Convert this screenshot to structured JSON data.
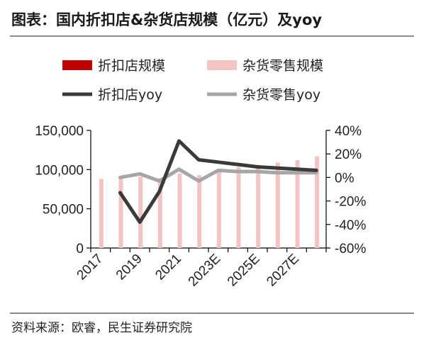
{
  "title": "图表：国内折扣店&杂货店规模（亿元）及yoy",
  "source": "资料来源：欧睿，民生证券研究院",
  "colors": {
    "bar1": "#c00000",
    "bar2": "#f2c4c4",
    "line1": "#3a3a3a",
    "line2": "#a6a6a6"
  },
  "chart_data": {
    "type": "bar",
    "categories": [
      "2017",
      "2018",
      "2019",
      "2020",
      "2021",
      "2022",
      "2023E",
      "2024E",
      "2025E",
      "2026E",
      "2027E",
      "2028E"
    ],
    "x_tick_labels": [
      "2017",
      "2019",
      "2021",
      "2023E",
      "2025E",
      "2027E"
    ],
    "y_left": {
      "ylim": [
        0,
        150000
      ],
      "ticks": [
        "150,000",
        "100,000",
        "50,000",
        "0"
      ]
    },
    "y_right": {
      "ylim": [
        -60,
        40
      ],
      "ticks": [
        "40%",
        "20%",
        "0%",
        "-20%",
        "-40%",
        "-60%"
      ]
    },
    "series": [
      {
        "name": "折扣店规模",
        "type": "bar",
        "axis": "left",
        "values": [
          50,
          60,
          50,
          50,
          80,
          100,
          120,
          140,
          160,
          170,
          180,
          200
        ]
      },
      {
        "name": "杂货零售规模",
        "type": "bar",
        "axis": "left",
        "values": [
          88000,
          88000,
          91000,
          89000,
          95000,
          93000,
          98000,
          103000,
          106000,
          109000,
          112000,
          117000
        ]
      },
      {
        "name": "折扣店yoy",
        "type": "line",
        "axis": "right",
        "values": [
          null,
          -13,
          -38,
          -12,
          31,
          15,
          13,
          11,
          9,
          8,
          7,
          6
        ]
      },
      {
        "name": "杂货零售yoy",
        "type": "line",
        "axis": "right",
        "values": [
          null,
          0,
          3,
          -3,
          7,
          -3,
          6,
          5,
          5,
          4,
          4,
          4
        ]
      }
    ]
  }
}
